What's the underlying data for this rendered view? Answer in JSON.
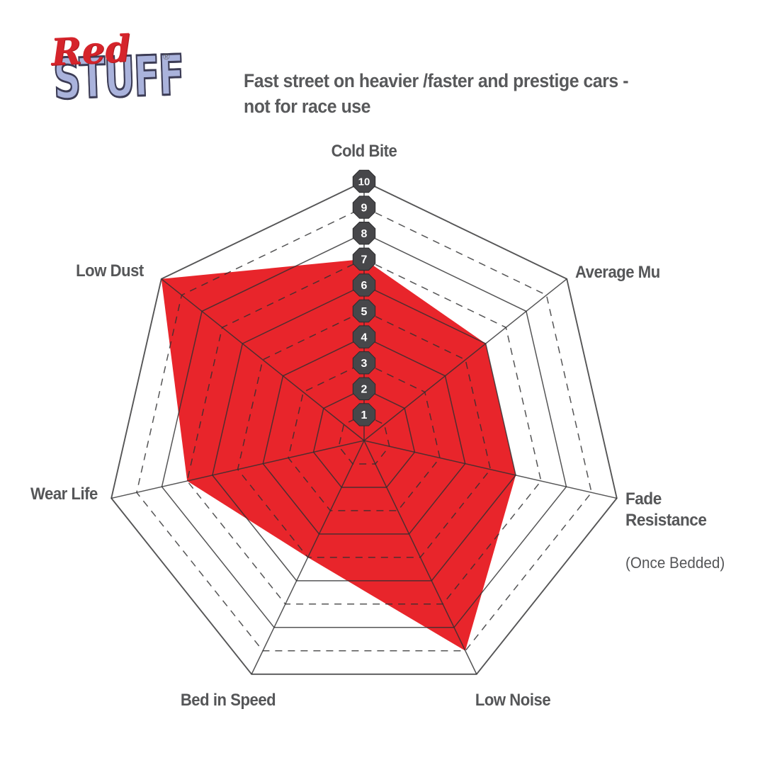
{
  "logo": {
    "line1": "Red",
    "line2": "STUFF",
    "registered_mark": "®",
    "colors": {
      "red": "#d5242b",
      "blue": "#aab3dc"
    }
  },
  "header": {
    "title": "Fast street on heavier /faster and prestige cars -\nnot for race use"
  },
  "chart_data": {
    "type": "radar",
    "axes_order": "clockwise-from-top",
    "axes": [
      {
        "label": "Cold Bite",
        "value": 7
      },
      {
        "label": "Average Mu",
        "value": 6
      },
      {
        "label": "Fade Resistance (Once Bedded)",
        "value": 6
      },
      {
        "label": "Low Noise",
        "value": 9
      },
      {
        "label": "Bed in Speed",
        "value": 5
      },
      {
        "label": "Wear Life",
        "value": 7
      },
      {
        "label": "Low Dust",
        "value": 10
      }
    ],
    "scale": {
      "min": 1,
      "max": 10,
      "tick_labels": [
        "1",
        "2",
        "3",
        "4",
        "5",
        "6",
        "7",
        "8",
        "9",
        "10"
      ],
      "grid": "10 concentric heptagons, odd rings dashed, even rings solid"
    },
    "axis_labels": {
      "cold_bite": "Cold Bite",
      "average_mu": "Average Mu",
      "fade_resistance": "Fade\nResistance",
      "fade_resistance_sub": "(Once Bedded)",
      "low_noise": "Low Noise",
      "bed_in_speed": "Bed in Speed",
      "wear_life": "Wear Life",
      "low_dust": "Low Dust"
    },
    "style": {
      "fill_color": "#e8252b",
      "line_color": "#2f2f31",
      "badge_color": "#47474a",
      "badge_text_color": "#ffffff",
      "label_color": "#555658"
    }
  }
}
